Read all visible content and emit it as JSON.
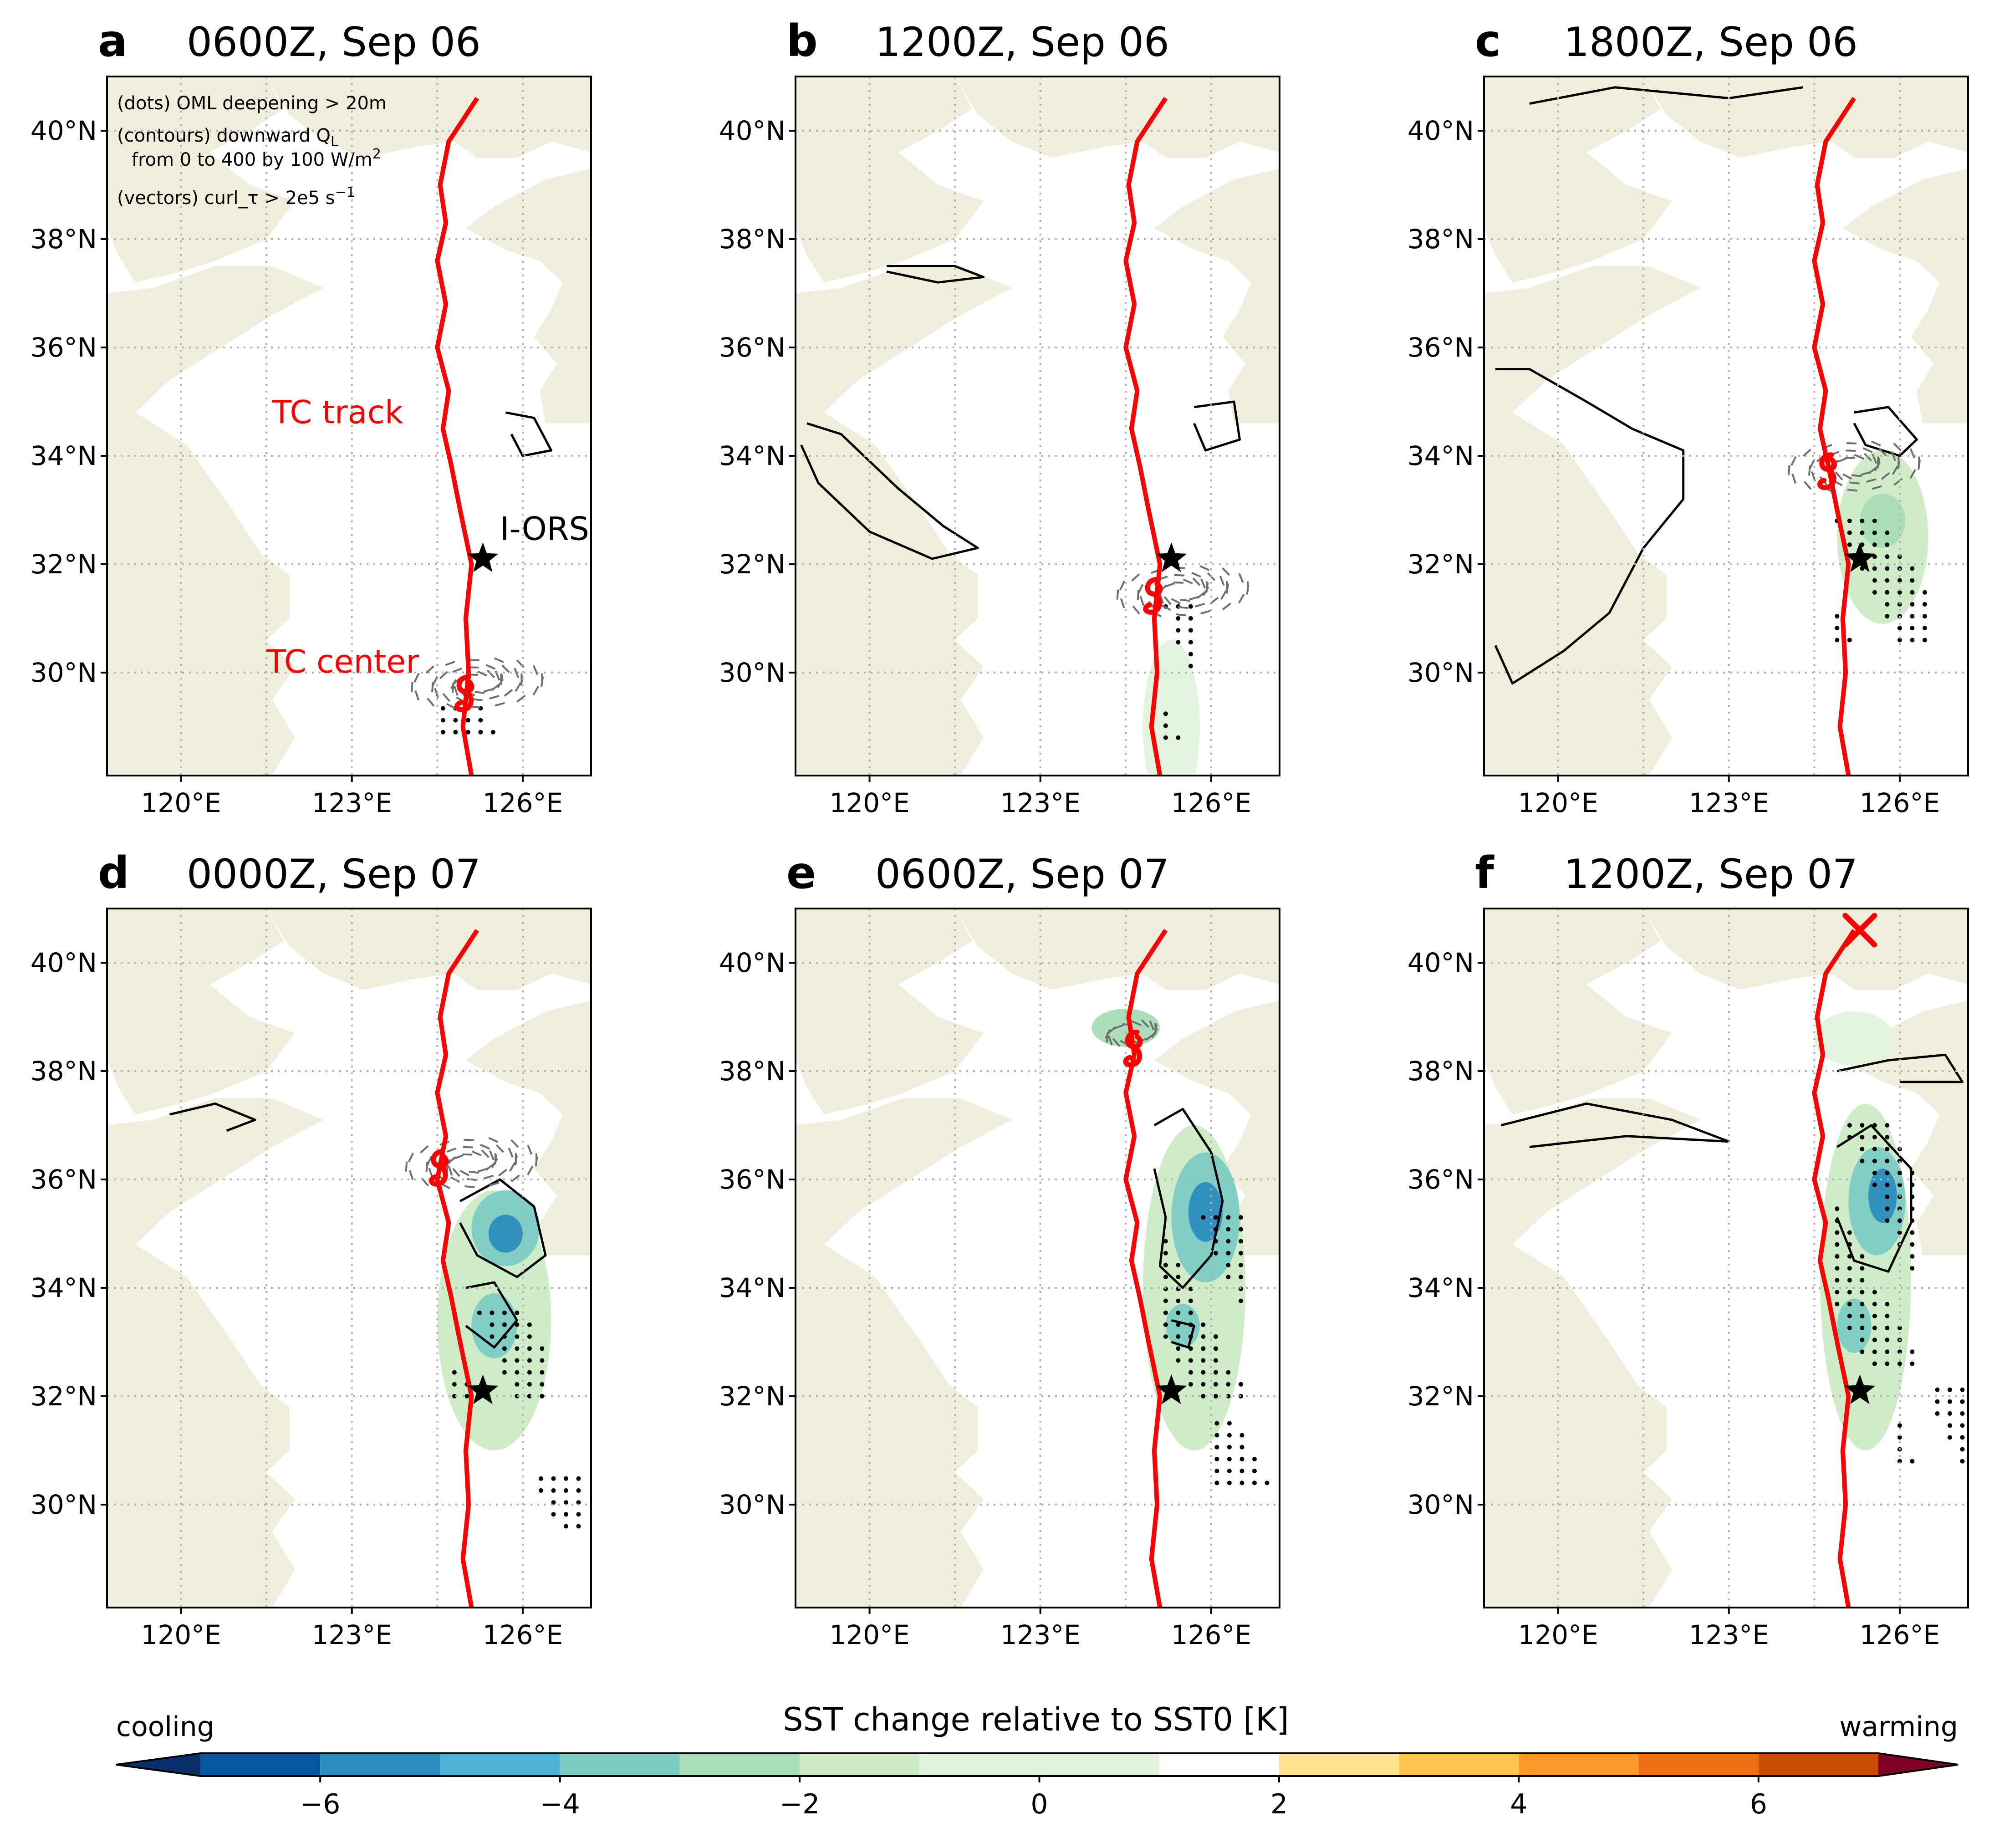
{
  "figure": {
    "lon_range": [
      118.7,
      127.2
    ],
    "lat_range": [
      28.1,
      41.0
    ],
    "lon_ticks": [
      120,
      123,
      126
    ],
    "lat_ticks": [
      30,
      32,
      34,
      36,
      38,
      40
    ],
    "lon_tick_labels": [
      "120°E",
      "123°E",
      "126°E"
    ],
    "lat_tick_labels": [
      "30°N",
      "32°N",
      "34°N",
      "36°N",
      "38°N",
      "40°N"
    ],
    "grid": true,
    "colors": {
      "land": "#efeedc",
      "track": "#ff0000",
      "contour": "#000000",
      "vector": "#6e6e6e",
      "grid": "#b0b0b0"
    },
    "track": [
      {
        "lon": 125.1,
        "lat": 28.1
      },
      {
        "lon": 124.95,
        "lat": 29.0
      },
      {
        "lon": 125.05,
        "lat": 30.0
      },
      {
        "lon": 125.0,
        "lat": 31.0
      },
      {
        "lon": 125.1,
        "lat": 32.0
      },
      {
        "lon": 124.9,
        "lat": 33.0
      },
      {
        "lon": 124.75,
        "lat": 33.8
      },
      {
        "lon": 124.6,
        "lat": 34.5
      },
      {
        "lon": 124.7,
        "lat": 35.2
      },
      {
        "lon": 124.5,
        "lat": 36.0
      },
      {
        "lon": 124.65,
        "lat": 36.8
      },
      {
        "lon": 124.5,
        "lat": 37.6
      },
      {
        "lon": 124.65,
        "lat": 38.3
      },
      {
        "lon": 124.55,
        "lat": 39.0
      },
      {
        "lon": 124.7,
        "lat": 39.8
      },
      {
        "lon": 125.2,
        "lat": 40.6
      }
    ],
    "station": {
      "lon": 125.3,
      "lat": 32.1
    }
  },
  "annotations": {
    "legend_lines": [
      "(dots) OML deepening > 20m",
      "(contours) downward Q",
      "from 0 to 400 by 100 W/m",
      "(vectors) curl_τ > 2e5 s"
    ],
    "subscript_L": "L",
    "superscript_2": "2",
    "superscript_m1": "−1",
    "tc_track_label": "TC track",
    "tc_center_label": "TC center",
    "station_label": "I-ORS"
  },
  "panels": [
    {
      "letter": "a",
      "title": "0600Z, Sep 06",
      "tc": {
        "lon": 125.0,
        "lat": 29.6
      }
    },
    {
      "letter": "b",
      "title": "1200Z, Sep 06",
      "tc": {
        "lon": 125.0,
        "lat": 31.4
      }
    },
    {
      "letter": "c",
      "title": "1800Z, Sep 06",
      "tc": {
        "lon": 124.75,
        "lat": 33.7
      }
    },
    {
      "letter": "d",
      "title": "0000Z, Sep 07",
      "tc": {
        "lon": 124.55,
        "lat": 36.2
      }
    },
    {
      "letter": "e",
      "title": "0600Z, Sep 07",
      "tc": {
        "lon": 124.65,
        "lat": 38.4
      }
    },
    {
      "letter": "f",
      "title": "1200Z, Sep 07",
      "end_marker": {
        "lon": 125.3,
        "lat": 40.6
      }
    }
  ],
  "colorbar": {
    "title": "SST change relative to SST0 [K]",
    "left_label": "cooling",
    "right_label": "warming",
    "ticks": [
      -6,
      -4,
      -2,
      0,
      2,
      4,
      6
    ],
    "tick_labels": [
      "−6",
      "−4",
      "−2",
      "0",
      "2",
      "4",
      "6"
    ],
    "bins": [
      -7,
      -6,
      -5,
      -4,
      -3,
      -2,
      -1,
      1,
      2,
      3,
      4,
      5,
      6,
      7
    ],
    "colors": [
      "#08589e",
      "#2b8cbe",
      "#4eb3d3",
      "#7bccc4",
      "#a8ddb5",
      "#ccebc5",
      "#e0f3db",
      "#ffffff",
      "#fee391",
      "#fec44f",
      "#fe9929",
      "#ec7014",
      "#cc4c02",
      "#e31a1c",
      "#b10026"
    ]
  }
}
